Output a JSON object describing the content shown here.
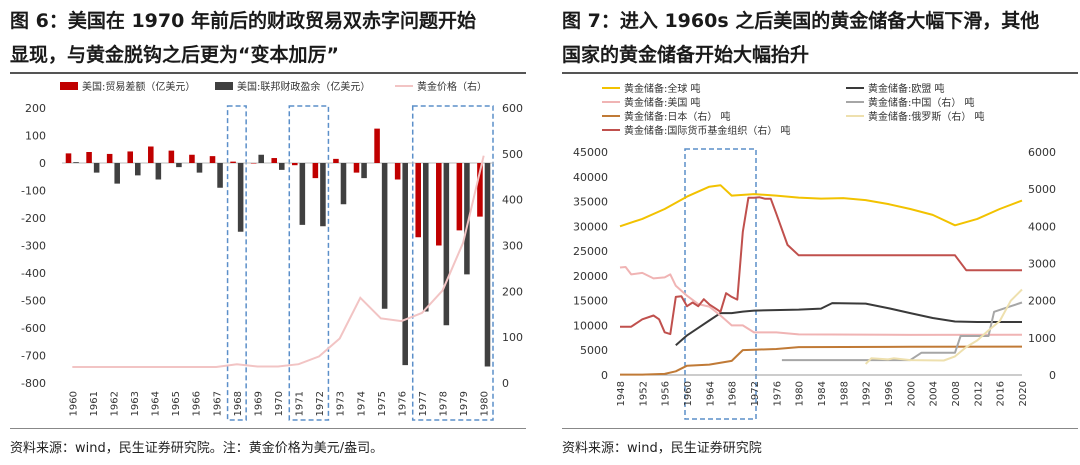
{
  "left_panel": {
    "title_line1": "图 6：美国在 1970 年前后的财政贸易双赤字问题开始",
    "title_line2": "显现，与黄金脱钩之后更为“变本加厉”",
    "source": "资料来源：wind，民生证券研究院。注：黄金价格为美元/盎司。"
  },
  "right_panel": {
    "title_line1": "图 7：进入 1960s 之后美国的黄金储备大幅下滑，其他",
    "title_line2": "国家的黄金储备开始大幅抬升",
    "source": "资料来源：wind，民生证券研究院"
  },
  "colors": {
    "trade": "#c00000",
    "fiscal": "#404040",
    "gold_price": "#f2c4c4",
    "box": "#5b8fc9",
    "world": "#f2c200",
    "usa": "#f0b4b4",
    "europe": "#3a3a3a",
    "china": "#a6a6a6",
    "japan": "#c07a36",
    "russia": "#eee0ae",
    "imf": "#c0504d"
  },
  "chart_data": [
    {
      "type": "bar",
      "legend": [
        "美国:贸易差额（亿美元）",
        "美国:联邦财政盈余（亿美元）",
        "黄金价格（右）"
      ],
      "categories": [
        "1960",
        "1961",
        "1962",
        "1963",
        "1964",
        "1965",
        "1966",
        "1967",
        "1968",
        "1969",
        "1970",
        "1971",
        "1972",
        "1973",
        "1974",
        "1975",
        "1976",
        "1977",
        "1978",
        "1979",
        "1980"
      ],
      "series": [
        {
          "name": "美国:贸易差额（亿美元）",
          "kind": "bar",
          "axis": "left",
          "values": [
            35,
            40,
            33,
            42,
            60,
            45,
            30,
            25,
            5,
            0,
            18,
            -8,
            -55,
            15,
            -35,
            125,
            -60,
            -270,
            -300,
            -245,
            -195
          ]
        },
        {
          "name": "美国:联邦财政盈余（亿美元）",
          "kind": "bar",
          "axis": "left",
          "values": [
            3,
            -35,
            -75,
            -45,
            -60,
            -15,
            -35,
            -90,
            -250,
            30,
            -25,
            -225,
            -230,
            -150,
            -55,
            -530,
            -735,
            -540,
            -590,
            -405,
            -740
          ]
        },
        {
          "name": "黄金价格（右）",
          "kind": "line",
          "axis": "right",
          "values": [
            35,
            35,
            35,
            35,
            35,
            35,
            35,
            35,
            41,
            36,
            36,
            41,
            58,
            97,
            186,
            141,
            135,
            153,
            202,
            306,
            496
          ]
        }
      ],
      "y_left": {
        "ylim": [
          -800,
          200
        ],
        "ticks": [
          "200",
          "100",
          "0",
          "-100",
          "-200",
          "-300",
          "-400",
          "-500",
          "-600",
          "-700",
          "-800"
        ]
      },
      "y_right": {
        "ylim": [
          0,
          600
        ],
        "ticks": [
          "600",
          "500",
          "400",
          "300",
          "200",
          "100",
          "0"
        ]
      },
      "highlight_ranges": [
        [
          "1968",
          "1968"
        ],
        [
          "1971",
          "1972"
        ],
        [
          "1977",
          "1980"
        ]
      ]
    },
    {
      "type": "line",
      "legend": [
        "黄金储备:全球 吨",
        "黄金储备:美国 吨",
        "黄金储备:日本（右） 吨",
        "黄金储备:国际货币基金组织（右） 吨",
        "黄金储备:欧盟 吨",
        "黄金储备:中国（右） 吨",
        "黄金储备:俄罗斯（右） 吨"
      ],
      "x_ticks": [
        "1948",
        "1952",
        "1956",
        "1960",
        "1964",
        "1968",
        "1972",
        "1976",
        "1980",
        "1984",
        "1988",
        "1992",
        "1996",
        "2000",
        "2004",
        "2008",
        "2012",
        "2016",
        "2020"
      ],
      "x_range": [
        1948,
        2020
      ],
      "y_left": {
        "ylim": [
          0,
          45000
        ],
        "ticks": [
          "45000",
          "40000",
          "35000",
          "30000",
          "25000",
          "20000",
          "15000",
          "10000",
          "5000",
          "0"
        ]
      },
      "y_right": {
        "ylim": [
          0,
          6000
        ],
        "ticks": [
          "6000",
          "5000",
          "4000",
          "3000",
          "2000",
          "1000",
          "0"
        ]
      },
      "series": [
        {
          "name": "黄金储备:全球 吨",
          "axis": "left",
          "color_key": "world",
          "points": [
            [
              1948,
              30000
            ],
            [
              1952,
              31500
            ],
            [
              1956,
              33500
            ],
            [
              1960,
              36000
            ],
            [
              1964,
              38000
            ],
            [
              1966,
              38300
            ],
            [
              1968,
              36200
            ],
            [
              1972,
              36500
            ],
            [
              1976,
              36200
            ],
            [
              1980,
              35800
            ],
            [
              1984,
              35600
            ],
            [
              1988,
              35700
            ],
            [
              1992,
              35300
            ],
            [
              1996,
              34500
            ],
            [
              2000,
              33500
            ],
            [
              2004,
              32300
            ],
            [
              2008,
              30200
            ],
            [
              2012,
              31500
            ],
            [
              2016,
              33500
            ],
            [
              2020,
              35200
            ]
          ]
        },
        {
          "name": "黄金储备:美国 吨",
          "axis": "left",
          "color_key": "usa",
          "points": [
            [
              1948,
              21700
            ],
            [
              1949,
              21800
            ],
            [
              1950,
              20300
            ],
            [
              1952,
              20600
            ],
            [
              1954,
              19500
            ],
            [
              1956,
              19700
            ],
            [
              1957,
              20300
            ],
            [
              1958,
              18000
            ],
            [
              1960,
              16000
            ],
            [
              1962,
              14300
            ],
            [
              1964,
              13800
            ],
            [
              1966,
              12000
            ],
            [
              1968,
              10000
            ],
            [
              1970,
              10000
            ],
            [
              1972,
              8600
            ],
            [
              1976,
              8600
            ],
            [
              1980,
              8200
            ],
            [
              2000,
              8100
            ],
            [
              2020,
              8130
            ]
          ]
        },
        {
          "name": "黄金储备:欧盟 吨",
          "axis": "left",
          "color_key": "europe",
          "points": [
            [
              1958,
              6000
            ],
            [
              1960,
              8000
            ],
            [
              1962,
              9500
            ],
            [
              1964,
              11000
            ],
            [
              1966,
              12500
            ],
            [
              1968,
              12500
            ],
            [
              1970,
              12800
            ],
            [
              1972,
              13000
            ],
            [
              1980,
              13200
            ],
            [
              1984,
              13400
            ],
            [
              1986,
              14500
            ],
            [
              1992,
              14400
            ],
            [
              1996,
              13500
            ],
            [
              2000,
              12500
            ],
            [
              2004,
              11500
            ],
            [
              2008,
              10800
            ],
            [
              2012,
              10700
            ],
            [
              2020,
              10700
            ]
          ]
        },
        {
          "name": "黄金储备:日本（右） 吨",
          "axis": "right",
          "color_key": "japan",
          "points": [
            [
              1948,
              10
            ],
            [
              1952,
              10
            ],
            [
              1956,
              30
            ],
            [
              1958,
              100
            ],
            [
              1960,
              250
            ],
            [
              1964,
              280
            ],
            [
              1968,
              380
            ],
            [
              1970,
              670
            ],
            [
              1972,
              680
            ],
            [
              1976,
              700
            ],
            [
              1980,
              750
            ],
            [
              2000,
              760
            ],
            [
              2020,
              765
            ]
          ]
        },
        {
          "name": "黄金储备:中国（右） 吨",
          "axis": "right",
          "color_key": "china",
          "points": [
            [
              1977,
              400
            ],
            [
              1980,
              400
            ],
            [
              1996,
              400
            ],
            [
              2000,
              400
            ],
            [
              2002,
              600
            ],
            [
              2008,
              600
            ],
            [
              2009,
              1050
            ],
            [
              2014,
              1050
            ],
            [
              2015,
              1700
            ],
            [
              2018,
              1850
            ],
            [
              2020,
              1950
            ]
          ]
        },
        {
          "name": "黄金储备:俄罗斯（右） 吨",
          "axis": "right",
          "color_key": "russia",
          "points": [
            [
              1992,
              300
            ],
            [
              1993,
              450
            ],
            [
              1996,
              420
            ],
            [
              1997,
              450
            ],
            [
              2000,
              400
            ],
            [
              2006,
              390
            ],
            [
              2008,
              500
            ],
            [
              2010,
              750
            ],
            [
              2012,
              930
            ],
            [
              2014,
              1200
            ],
            [
              2016,
              1450
            ],
            [
              2018,
              2000
            ],
            [
              2020,
              2300
            ]
          ]
        },
        {
          "name": "黄金储备:国际货币基金组织（右） 吨",
          "axis": "right",
          "color_key": "imf",
          "points": [
            [
              1948,
              1300
            ],
            [
              1950,
              1300
            ],
            [
              1952,
              1500
            ],
            [
              1954,
              1600
            ],
            [
              1955,
              1500
            ],
            [
              1956,
              1150
            ],
            [
              1957,
              1100
            ],
            [
              1958,
              2100
            ],
            [
              1959,
              2120
            ],
            [
              1960,
              1850
            ],
            [
              1961,
              1950
            ],
            [
              1962,
              1850
            ],
            [
              1963,
              2040
            ],
            [
              1964,
              1900
            ],
            [
              1965,
              1800
            ],
            [
              1966,
              1700
            ],
            [
              1967,
              2200
            ],
            [
              1968,
              2100
            ],
            [
              1969,
              2030
            ],
            [
              1970,
              3850
            ],
            [
              1971,
              4770
            ],
            [
              1972,
              4770
            ],
            [
              1973,
              4780
            ],
            [
              1974,
              4740
            ],
            [
              1975,
              4740
            ],
            [
              1976,
              4340
            ],
            [
              1978,
              3500
            ],
            [
              1980,
              3220
            ],
            [
              1984,
              3220
            ],
            [
              2008,
              3220
            ],
            [
              2010,
              2820
            ],
            [
              2020,
              2820
            ]
          ]
        }
      ],
      "highlight_ranges": [
        [
          "1960",
          "1972"
        ]
      ]
    }
  ]
}
